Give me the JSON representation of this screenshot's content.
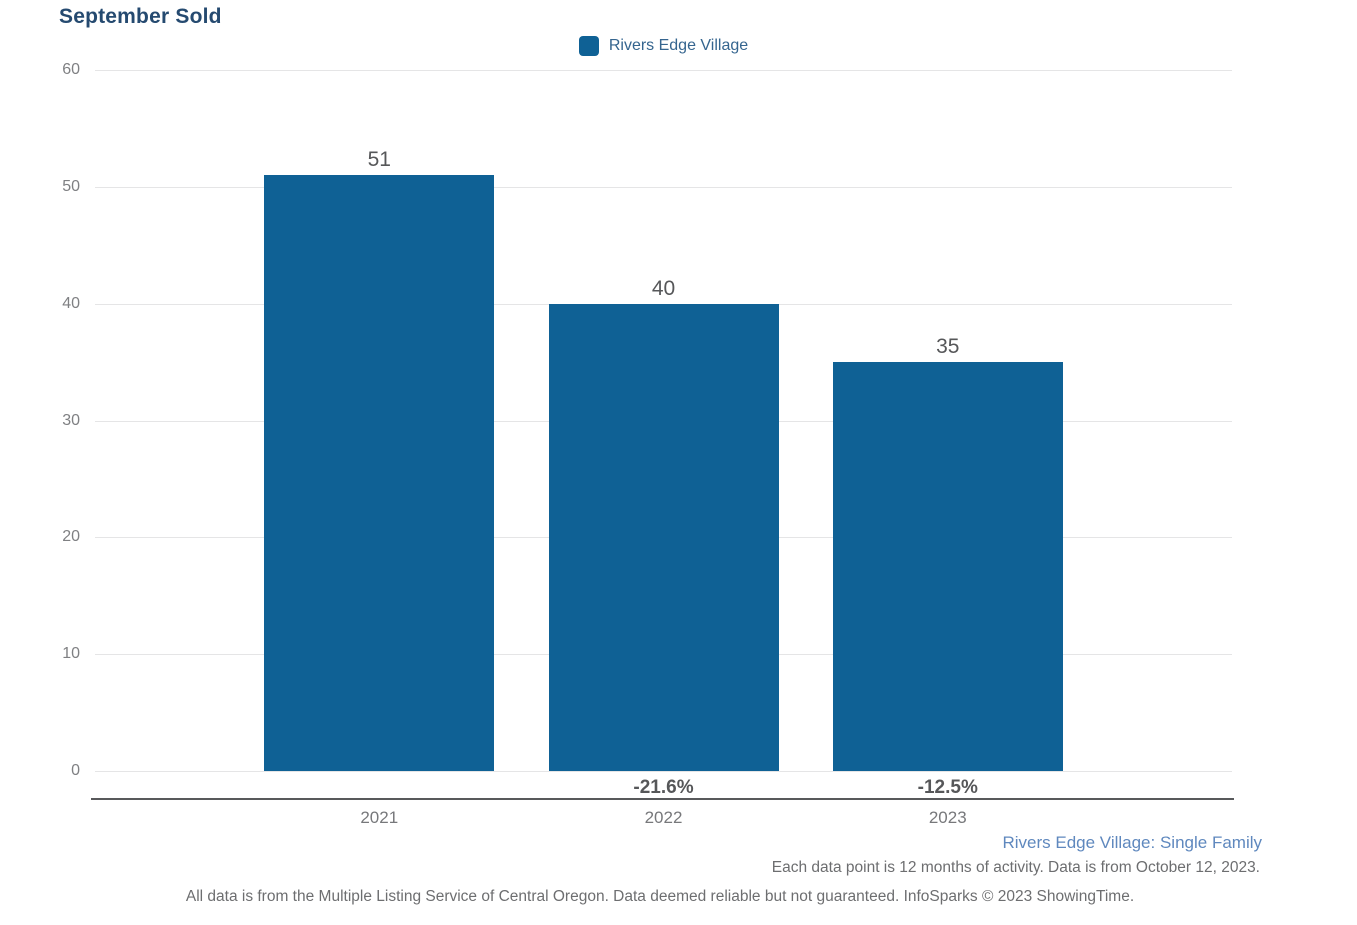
{
  "title": "September Sold",
  "legend": {
    "label": "Rivers Edge Village",
    "swatch_color": "#0f6195"
  },
  "chart_data": {
    "type": "bar",
    "title": "September Sold",
    "series_name": "Rivers Edge Village",
    "categories": [
      "2021",
      "2022",
      "2023"
    ],
    "values": [
      51,
      40,
      35
    ],
    "pct_change_labels": [
      "",
      "-21.6%",
      "-12.5%"
    ],
    "xlabel": "",
    "ylabel": "",
    "ylim": [
      0,
      60
    ],
    "yticks": [
      0,
      10,
      20,
      30,
      40,
      50,
      60
    ],
    "grid": "horizontal",
    "legend_position": "top-center",
    "bar_color": "#0f6195"
  },
  "footnotes": {
    "series_note": "Rivers Edge Village: Single Family",
    "data_note": "Each data point is 12 months of activity. Data is from October 12, 2023.",
    "disclaimer": "All data is from the Multiple Listing Service of Central Oregon. Data deemed reliable but not guaranteed. InfoSparks © 2023 ShowingTime."
  },
  "colors": {
    "title_color": "#254a70",
    "legend_text": "#35658f",
    "series_note_blue": "#5f88be",
    "axis_line": "#58595b",
    "gridline": "#e5e5e6",
    "tick_text": "#7f8083",
    "value_label_text": "#565759"
  }
}
